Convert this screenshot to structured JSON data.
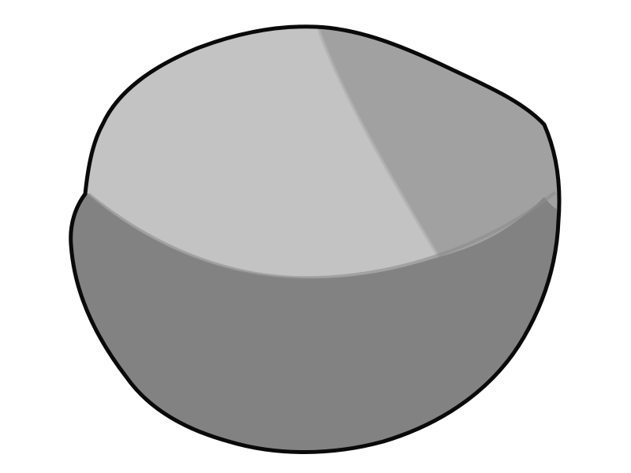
{
  "image": {
    "icon": "rounded-blob-cylinder",
    "colors": {
      "background": "#ffffff",
      "outline": "#0a0a0a",
      "top_large_section": "#c3c3c3",
      "top_small_section": "#a1a1a1",
      "body_side": "#828282"
    }
  }
}
